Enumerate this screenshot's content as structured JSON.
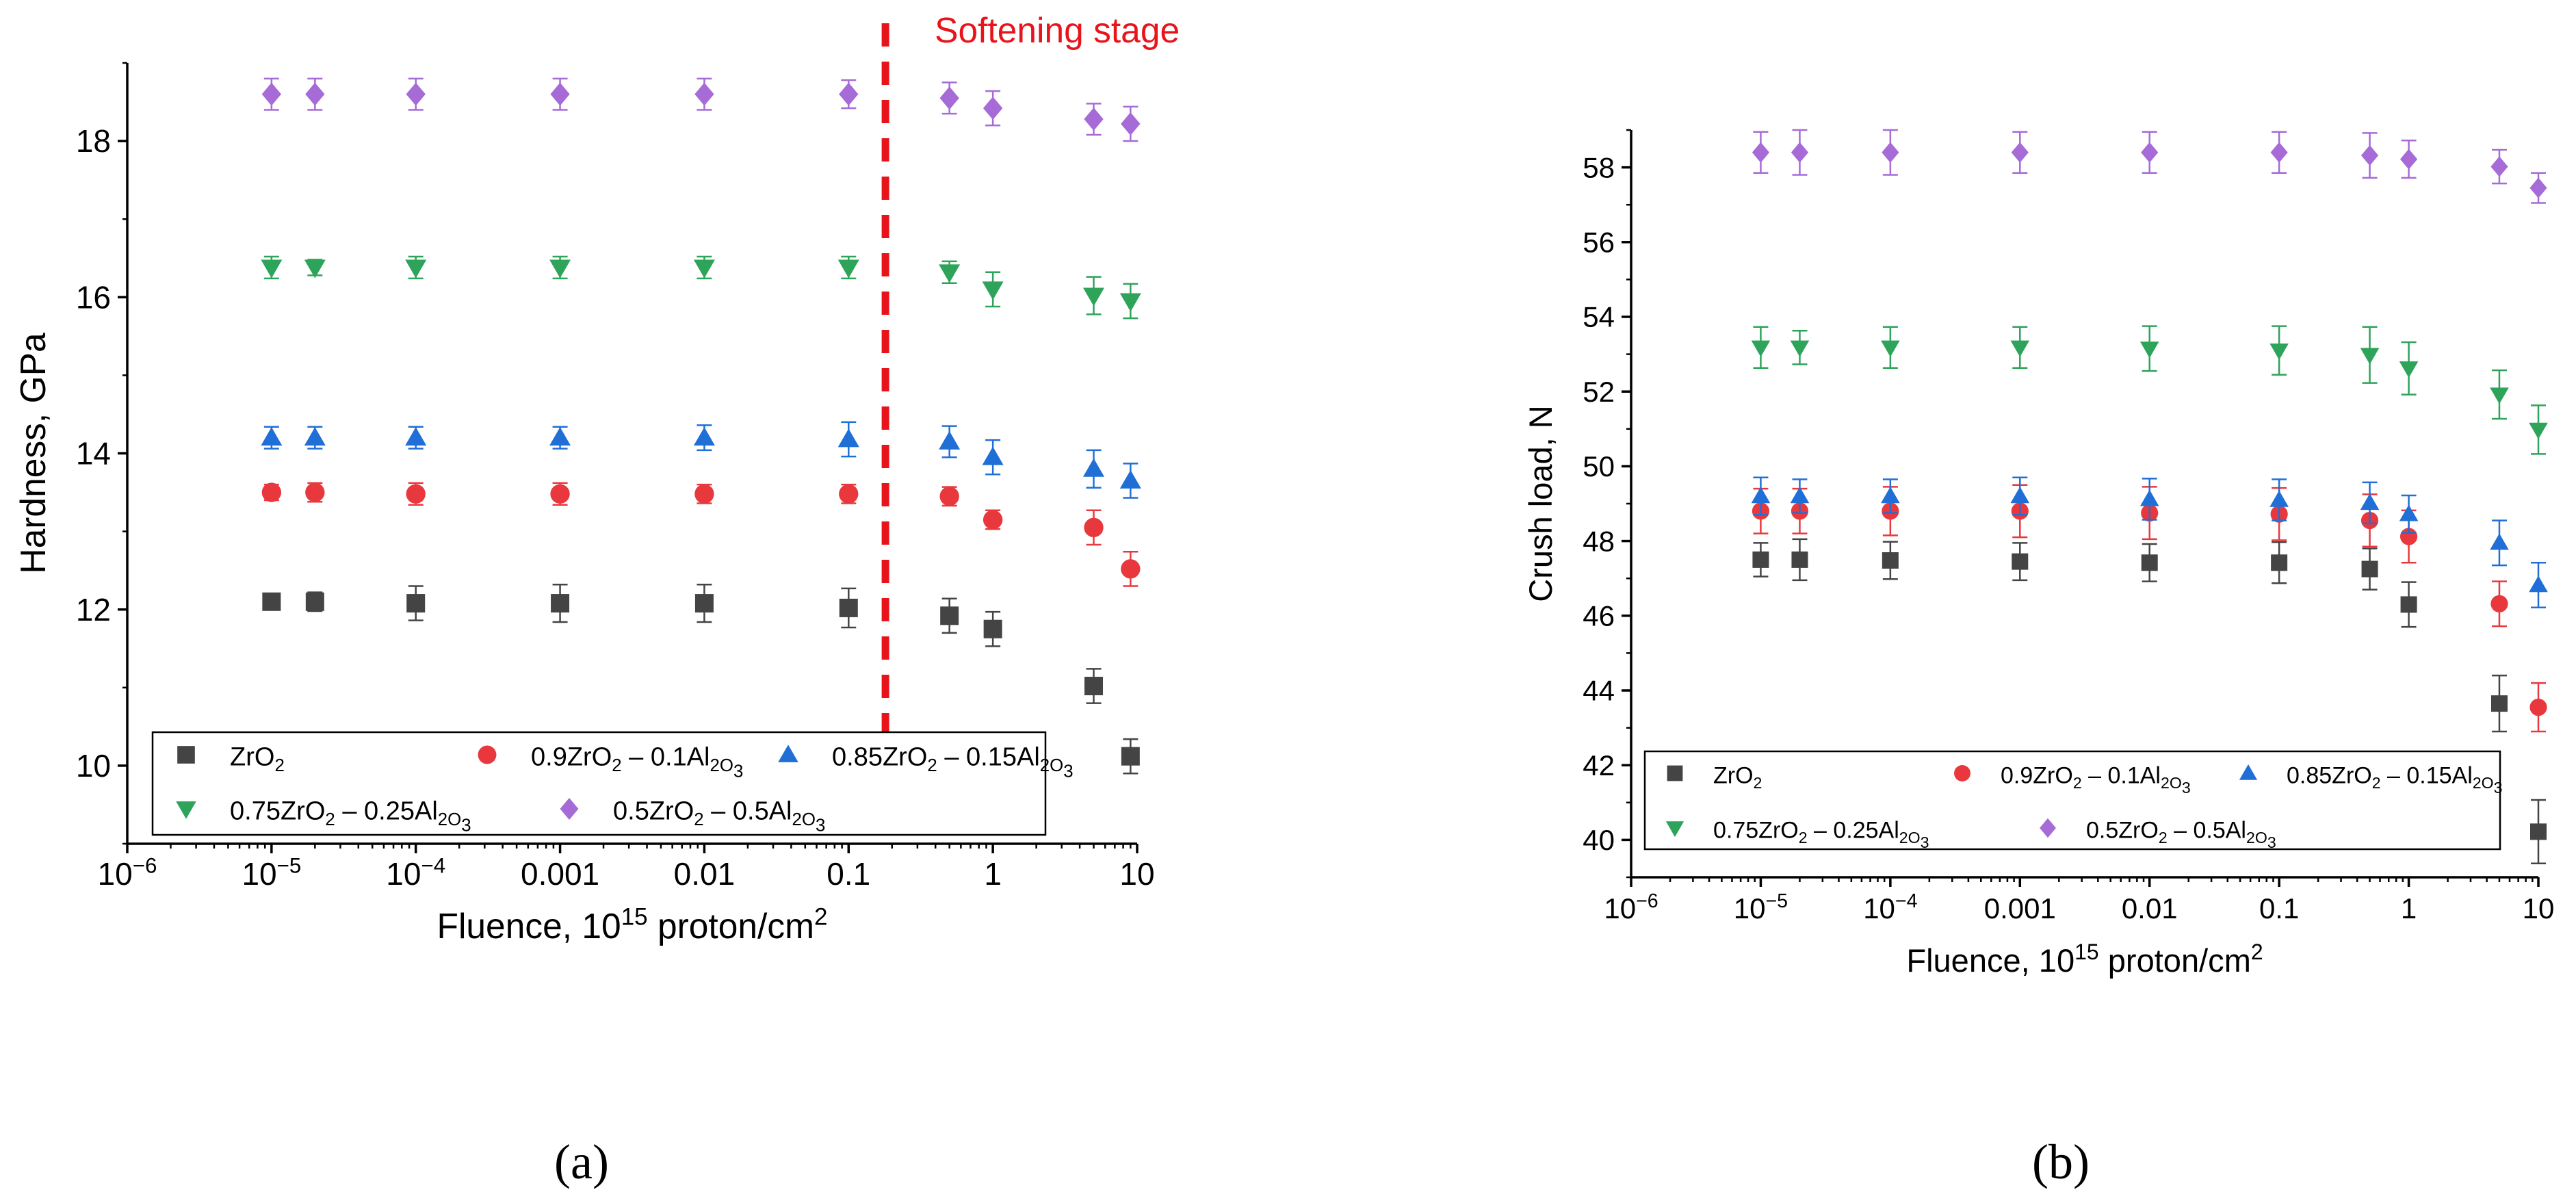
{
  "figure": {
    "panel_labels": [
      "(a)",
      "(b)"
    ]
  },
  "chart_data": [
    {
      "type": "scatter",
      "panel": "(a)",
      "xlabel": "Fluence, 10^15 proton/cm^2",
      "ylabel": "Hardness, GPa",
      "xscale": "log",
      "xlim": [
        1e-06,
        10
      ],
      "ylim": [
        9,
        19
      ],
      "xticks": [
        1e-06,
        1e-05,
        0.0001,
        0.001,
        0.01,
        0.1,
        1,
        10
      ],
      "xtick_labels": [
        "10^−6",
        "10^−5",
        "10^−4",
        "0.001",
        "0.01",
        "0.1",
        "1",
        "10"
      ],
      "yticks": [
        10,
        12,
        14,
        16,
        18
      ],
      "ytick_labels": [
        "10",
        "12",
        "14",
        "16",
        "18"
      ],
      "x": [
        1e-05,
        2e-05,
        0.0001,
        0.001,
        0.01,
        0.1,
        0.5,
        1,
        5,
        9
      ],
      "annotation": {
        "text": "Softening stage",
        "x": 0.18,
        "color": "#e8141b"
      },
      "legend_position": "bottom",
      "series": [
        {
          "name": "ZrO_2",
          "marker": "square",
          "color": "#444444",
          "values": [
            12.1,
            12.1,
            12.08,
            12.08,
            12.08,
            12.02,
            11.92,
            11.75,
            11.02,
            10.12
          ],
          "errors": [
            0.1,
            0.12,
            0.22,
            0.24,
            0.24,
            0.25,
            0.22,
            0.22,
            0.22,
            0.22
          ]
        },
        {
          "name": "0.9ZrO_2 – 0.1Al_2O_3",
          "marker": "circle",
          "color": "#e8383d",
          "values": [
            13.5,
            13.5,
            13.48,
            13.48,
            13.48,
            13.48,
            13.45,
            13.15,
            13.05,
            12.52
          ],
          "errors": [
            0.1,
            0.12,
            0.14,
            0.14,
            0.12,
            0.12,
            0.12,
            0.12,
            0.22,
            0.22
          ]
        },
        {
          "name": "0.85ZrO_2 – 0.15Al_2O_3",
          "marker": "triangle-up",
          "color": "#1f6fd6",
          "values": [
            14.2,
            14.2,
            14.2,
            14.2,
            14.2,
            14.18,
            14.15,
            13.95,
            13.8,
            13.65
          ],
          "errors": [
            0.14,
            0.14,
            0.14,
            0.14,
            0.16,
            0.22,
            0.2,
            0.22,
            0.24,
            0.22
          ]
        },
        {
          "name": "0.75ZrO_2 – 0.25Al_2O_3",
          "marker": "triangle-down",
          "color": "#2ea35a",
          "values": [
            16.38,
            16.38,
            16.38,
            16.38,
            16.38,
            16.38,
            16.32,
            16.1,
            16.02,
            15.95
          ],
          "errors": [
            0.14,
            0.1,
            0.14,
            0.14,
            0.14,
            0.14,
            0.14,
            0.22,
            0.24,
            0.22
          ]
        },
        {
          "name": "0.5ZrO_2 – 0.5Al_2O_3",
          "marker": "diamond",
          "color": "#a66bd6",
          "values": [
            18.6,
            18.6,
            18.6,
            18.6,
            18.6,
            18.6,
            18.55,
            18.42,
            18.28,
            18.22
          ],
          "errors": [
            0.2,
            0.2,
            0.2,
            0.2,
            0.2,
            0.18,
            0.2,
            0.22,
            0.2,
            0.22
          ]
        }
      ]
    },
    {
      "type": "scatter",
      "panel": "(b)",
      "xlabel": "Fluence, 10^15 proton/cm^2",
      "ylabel": "Crush load, N",
      "xscale": "log",
      "xlim": [
        1e-06,
        10
      ],
      "ylim": [
        39,
        59
      ],
      "xticks": [
        1e-06,
        1e-05,
        0.0001,
        0.001,
        0.01,
        0.1,
        1,
        10
      ],
      "xtick_labels": [
        "10^−6",
        "10^−5",
        "10^−4",
        "0.001",
        "0.01",
        "0.1",
        "1",
        "10"
      ],
      "yticks": [
        40,
        42,
        44,
        46,
        48,
        50,
        52,
        54,
        56,
        58
      ],
      "ytick_labels": [
        "40",
        "42",
        "44",
        "46",
        "48",
        "50",
        "52",
        "54",
        "56",
        "58"
      ],
      "x": [
        1e-05,
        2e-05,
        0.0001,
        0.001,
        0.01,
        0.1,
        0.5,
        1,
        5,
        10
      ],
      "legend_position": "bottom",
      "series": [
        {
          "name": "ZrO_2",
          "marker": "square",
          "color": "#444444",
          "values": [
            47.5,
            47.5,
            47.48,
            47.45,
            47.42,
            47.42,
            47.25,
            46.3,
            43.65,
            40.22
          ],
          "errors": [
            0.45,
            0.55,
            0.5,
            0.5,
            0.5,
            0.55,
            0.55,
            0.6,
            0.75,
            0.85
          ]
        },
        {
          "name": "0.9ZrO_2 – 0.1Al_2O_3",
          "marker": "circle",
          "color": "#e8383d",
          "values": [
            48.8,
            48.8,
            48.8,
            48.8,
            48.75,
            48.72,
            48.55,
            48.12,
            46.32,
            43.55
          ],
          "errors": [
            0.6,
            0.6,
            0.65,
            0.7,
            0.7,
            0.7,
            0.7,
            0.7,
            0.6,
            0.65
          ]
        },
        {
          "name": "0.85ZrO_2 – 0.15Al_2O_3",
          "marker": "triangle-up",
          "color": "#1f6fd6",
          "values": [
            49.2,
            49.2,
            49.2,
            49.2,
            49.12,
            49.1,
            49.02,
            48.72,
            47.95,
            46.82
          ],
          "errors": [
            0.5,
            0.45,
            0.45,
            0.5,
            0.55,
            0.55,
            0.55,
            0.5,
            0.6,
            0.6
          ]
        },
        {
          "name": "0.75ZrO_2 – 0.25Al_2O_3",
          "marker": "triangle-down",
          "color": "#2ea35a",
          "values": [
            53.18,
            53.18,
            53.18,
            53.18,
            53.15,
            53.1,
            52.98,
            52.62,
            51.92,
            50.98
          ],
          "errors": [
            0.55,
            0.45,
            0.55,
            0.55,
            0.6,
            0.65,
            0.75,
            0.7,
            0.65,
            0.65
          ]
        },
        {
          "name": "0.5ZrO_2 – 0.5Al_2O_3",
          "marker": "diamond",
          "color": "#a66bd6",
          "values": [
            58.4,
            58.4,
            58.4,
            58.4,
            58.4,
            58.4,
            58.32,
            58.22,
            58.02,
            57.45
          ],
          "errors": [
            0.55,
            0.6,
            0.6,
            0.55,
            0.55,
            0.55,
            0.6,
            0.5,
            0.45,
            0.4
          ]
        }
      ]
    }
  ]
}
